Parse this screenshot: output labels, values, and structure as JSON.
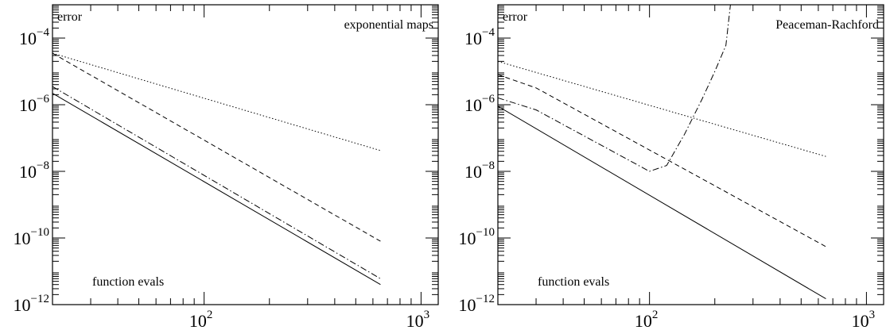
{
  "chart_data": [
    {
      "type": "line",
      "scale": {
        "x": "log",
        "y": "log"
      },
      "xlim": [
        20,
        1200
      ],
      "ylim": [
        1e-12,
        0.001
      ],
      "ylabel": "error",
      "xlabel": "function evals",
      "title": "exponential maps",
      "x_ticks": [
        {
          "base": "10",
          "exp": "2",
          "value": 100
        },
        {
          "base": "10",
          "exp": "3",
          "value": 1000
        }
      ],
      "y_ticks": [
        {
          "base": "10",
          "exp": "−4",
          "value": 0.0001
        },
        {
          "base": "10",
          "exp": "−6",
          "value": 1e-06
        },
        {
          "base": "10",
          "exp": "−8",
          "value": 1e-08
        },
        {
          "base": "10",
          "exp": "−10",
          "value": 1e-10
        },
        {
          "base": "10",
          "exp": "−12",
          "value": 1e-12
        }
      ],
      "series": [
        {
          "style": "dotted",
          "x": [
            20,
            650
          ],
          "y": [
            3.5e-05,
            4.2e-08
          ]
        },
        {
          "style": "dashed",
          "x": [
            20,
            650
          ],
          "y": [
            3.5e-05,
            8e-11
          ]
        },
        {
          "style": "dashdot",
          "x": [
            20,
            650
          ],
          "y": [
            3.5e-06,
            6e-12
          ]
        },
        {
          "style": "solid",
          "x": [
            20,
            650
          ],
          "y": [
            2.2e-06,
            4e-12
          ]
        }
      ]
    },
    {
      "type": "line",
      "scale": {
        "x": "log",
        "y": "log"
      },
      "xlim": [
        20,
        1200
      ],
      "ylim": [
        1e-12,
        0.001
      ],
      "ylabel": "error",
      "xlabel": "function evals",
      "title": "Peaceman-Rachford",
      "x_ticks": [
        {
          "base": "10",
          "exp": "2",
          "value": 100
        },
        {
          "base": "10",
          "exp": "3",
          "value": 1000
        }
      ],
      "y_ticks": [
        {
          "base": "10",
          "exp": "−4",
          "value": 0.0001
        },
        {
          "base": "10",
          "exp": "−6",
          "value": 1e-06
        },
        {
          "base": "10",
          "exp": "−8",
          "value": 1e-08
        },
        {
          "base": "10",
          "exp": "−10",
          "value": 1e-10
        },
        {
          "base": "10",
          "exp": "−12",
          "value": 1e-12
        }
      ],
      "series": [
        {
          "style": "dotted",
          "x": [
            20,
            650
          ],
          "y": [
            2e-05,
            2.8e-08
          ]
        },
        {
          "style": "dashed",
          "x": [
            20,
            30,
            650
          ],
          "y": [
            8e-06,
            3.2e-06,
            5.5e-11
          ]
        },
        {
          "style": "dashdot",
          "x": [
            20,
            30,
            100,
            120,
            145,
            175,
            200,
            225,
            236
          ],
          "y": [
            1.6e-06,
            7e-07,
            1e-08,
            1.5e-08,
            1.3e-07,
            1.5e-06,
            1e-05,
            6e-05,
            0.001
          ]
        },
        {
          "style": "solid",
          "x": [
            20,
            650
          ],
          "y": [
            9e-07,
            1.5e-12
          ]
        }
      ]
    }
  ]
}
